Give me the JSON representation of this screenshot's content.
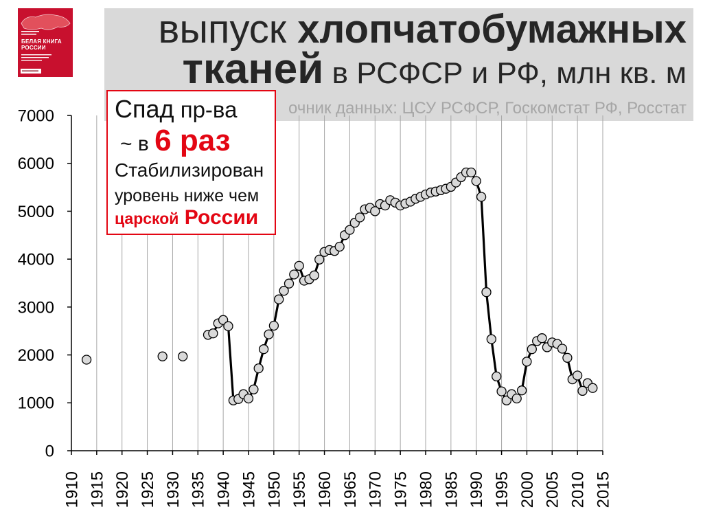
{
  "book_cover": {
    "title_line1": "БЕЛАЯ КНИГА",
    "title_line2": "РОССИИ"
  },
  "title": {
    "part1": "выпуск ",
    "part2": "хлопчатобумажных",
    "part3": "тканей",
    "part4": " в РСФСР и РФ, млн кв. м"
  },
  "source": "очник данных: ЦСУ РСФСР, Госкомстат РФ, Росстат",
  "callout": {
    "line1_a": "Спад",
    "line1_b": " пр-ва",
    "line2_a": "~ в ",
    "line2_b": "6 раз",
    "line3": "Стабилизирован",
    "line4": "уровень ниже чем",
    "line5_a": "царской",
    "line5_b": " России"
  },
  "colors": {
    "title_bg": "#d9d9d9",
    "accent_red": "#e30613",
    "grid": "#a6a6a6",
    "line": "#000000",
    "marker_fill": "#d9d9d9",
    "marker_stroke": "#000000",
    "book_red": "#c8102e"
  },
  "chart_data": {
    "type": "line",
    "xlabel": "",
    "ylabel": "",
    "xlim": [
      1910,
      2015
    ],
    "ylim": [
      0,
      7000
    ],
    "x_ticks": [
      1910,
      1915,
      1920,
      1925,
      1930,
      1935,
      1940,
      1945,
      1950,
      1955,
      1960,
      1965,
      1970,
      1975,
      1980,
      1985,
      1990,
      1995,
      2000,
      2005,
      2010,
      2015
    ],
    "y_ticks": [
      0,
      1000,
      2000,
      3000,
      4000,
      5000,
      6000,
      7000
    ],
    "grid": {
      "x": true,
      "y": false
    },
    "legend": "none",
    "series": [
      {
        "x": [
          1913,
          1928,
          1932,
          1937,
          1938,
          1939,
          1940,
          1941,
          1942,
          1943,
          1944,
          1945,
          1946,
          1947,
          1948,
          1949,
          1950,
          1951,
          1952,
          1953,
          1954,
          1955,
          1956,
          1957,
          1958,
          1959,
          1960,
          1961,
          1962,
          1963,
          1964,
          1965,
          1966,
          1967,
          1968,
          1969,
          1970,
          1971,
          1972,
          1973,
          1974,
          1975,
          1976,
          1977,
          1978,
          1979,
          1980,
          1981,
          1982,
          1983,
          1984,
          1985,
          1986,
          1987,
          1988,
          1989,
          1990,
          1991,
          1992,
          1993,
          1994,
          1995,
          1996,
          1997,
          1998,
          1999,
          2000,
          2001,
          2002,
          2003,
          2004,
          2005,
          2006,
          2007,
          2008,
          2009,
          2010,
          2011,
          2012,
          2013
        ],
        "y": [
          1900,
          1970,
          1970,
          2420,
          2450,
          2660,
          2730,
          2600,
          1050,
          1080,
          1180,
          1090,
          1280,
          1720,
          2120,
          2430,
          2610,
          3160,
          3340,
          3490,
          3680,
          3860,
          3550,
          3580,
          3660,
          3990,
          4150,
          4190,
          4170,
          4260,
          4500,
          4610,
          4760,
          4870,
          5040,
          5070,
          5000,
          5150,
          5120,
          5230,
          5180,
          5120,
          5160,
          5200,
          5260,
          5300,
          5350,
          5390,
          5410,
          5440,
          5470,
          5510,
          5600,
          5710,
          5810,
          5810,
          5630,
          5300,
          3310,
          2330,
          1550,
          1240,
          1050,
          1180,
          1090,
          1260,
          1860,
          2120,
          2290,
          2350,
          2160,
          2260,
          2230,
          2130,
          1940,
          1490,
          1570,
          1250,
          1410,
          1310
        ]
      }
    ]
  }
}
